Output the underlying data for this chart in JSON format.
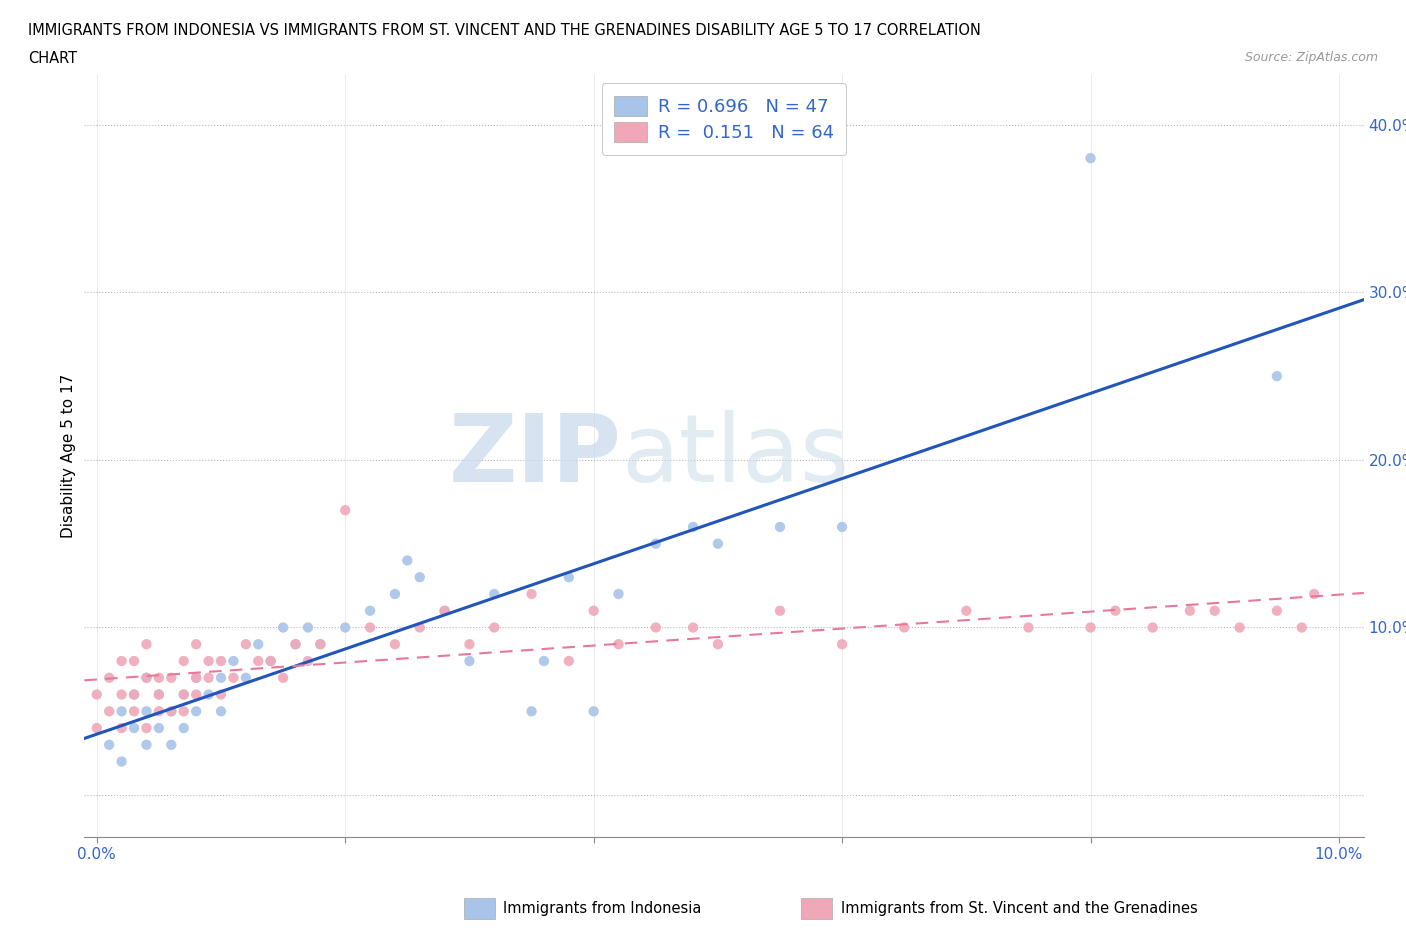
{
  "title_line1": "IMMIGRANTS FROM INDONESIA VS IMMIGRANTS FROM ST. VINCENT AND THE GRENADINES DISABILITY AGE 5 TO 17 CORRELATION",
  "title_line2": "CHART",
  "source": "Source: ZipAtlas.com",
  "ylabel": "Disability Age 5 to 17",
  "xlim": [
    -0.001,
    0.102
  ],
  "ylim": [
    -0.025,
    0.43
  ],
  "xticks": [
    0.0,
    0.02,
    0.04,
    0.06,
    0.08,
    0.1
  ],
  "xtick_labels": [
    "0.0%",
    "",
    "",
    "",
    "",
    "10.0%"
  ],
  "ytick_positions": [
    0.0,
    0.1,
    0.2,
    0.3,
    0.4
  ],
  "ytick_labels": [
    "",
    "10.0%",
    "20.0%",
    "30.0%",
    "40.0%"
  ],
  "color_indonesia": "#a8c4e8",
  "color_svg": "#f0a8b8",
  "color_line_indonesia": "#2255bb",
  "color_line_svg": "#e87898",
  "R_indonesia": 0.696,
  "N_indonesia": 47,
  "R_svg": 0.151,
  "N_svg": 64,
  "legend_label_indonesia": "Immigrants from Indonesia",
  "legend_label_svg": "Immigrants from St. Vincent and the Grenadines",
  "watermark_zip": "ZIP",
  "watermark_atlas": "atlas",
  "background_color": "#ffffff",
  "grid_color": "#cccccc",
  "scatter_indonesia_x": [
    0.001,
    0.002,
    0.002,
    0.003,
    0.003,
    0.004,
    0.004,
    0.004,
    0.005,
    0.005,
    0.006,
    0.006,
    0.007,
    0.007,
    0.008,
    0.008,
    0.009,
    0.01,
    0.01,
    0.011,
    0.012,
    0.013,
    0.014,
    0.015,
    0.016,
    0.017,
    0.018,
    0.02,
    0.022,
    0.024,
    0.025,
    0.026,
    0.028,
    0.03,
    0.032,
    0.035,
    0.036,
    0.038,
    0.04,
    0.042,
    0.045,
    0.048,
    0.05,
    0.055,
    0.06,
    0.08,
    0.095
  ],
  "scatter_indonesia_y": [
    0.03,
    0.05,
    0.02,
    0.04,
    0.06,
    0.03,
    0.05,
    0.07,
    0.04,
    0.06,
    0.05,
    0.03,
    0.06,
    0.04,
    0.07,
    0.05,
    0.06,
    0.05,
    0.07,
    0.08,
    0.07,
    0.09,
    0.08,
    0.1,
    0.09,
    0.1,
    0.09,
    0.1,
    0.11,
    0.12,
    0.14,
    0.13,
    0.11,
    0.08,
    0.12,
    0.05,
    0.08,
    0.13,
    0.05,
    0.12,
    0.15,
    0.16,
    0.15,
    0.16,
    0.16,
    0.38,
    0.25
  ],
  "scatter_svg_x": [
    0.0,
    0.0,
    0.001,
    0.001,
    0.002,
    0.002,
    0.002,
    0.003,
    0.003,
    0.003,
    0.004,
    0.004,
    0.004,
    0.005,
    0.005,
    0.005,
    0.006,
    0.006,
    0.007,
    0.007,
    0.007,
    0.008,
    0.008,
    0.008,
    0.009,
    0.009,
    0.01,
    0.01,
    0.011,
    0.012,
    0.013,
    0.014,
    0.015,
    0.016,
    0.017,
    0.018,
    0.02,
    0.022,
    0.024,
    0.026,
    0.028,
    0.03,
    0.032,
    0.035,
    0.038,
    0.04,
    0.042,
    0.045,
    0.048,
    0.05,
    0.055,
    0.06,
    0.065,
    0.07,
    0.075,
    0.08,
    0.082,
    0.085,
    0.088,
    0.09,
    0.092,
    0.095,
    0.097,
    0.098
  ],
  "scatter_svg_y": [
    0.04,
    0.06,
    0.05,
    0.07,
    0.04,
    0.06,
    0.08,
    0.05,
    0.06,
    0.08,
    0.04,
    0.07,
    0.09,
    0.05,
    0.07,
    0.06,
    0.05,
    0.07,
    0.05,
    0.08,
    0.06,
    0.07,
    0.06,
    0.09,
    0.07,
    0.08,
    0.06,
    0.08,
    0.07,
    0.09,
    0.08,
    0.08,
    0.07,
    0.09,
    0.08,
    0.09,
    0.17,
    0.1,
    0.09,
    0.1,
    0.11,
    0.09,
    0.1,
    0.12,
    0.08,
    0.11,
    0.09,
    0.1,
    0.1,
    0.09,
    0.11,
    0.09,
    0.1,
    0.11,
    0.1,
    0.1,
    0.11,
    0.1,
    0.11,
    0.11,
    0.1,
    0.11,
    0.1,
    0.12
  ]
}
